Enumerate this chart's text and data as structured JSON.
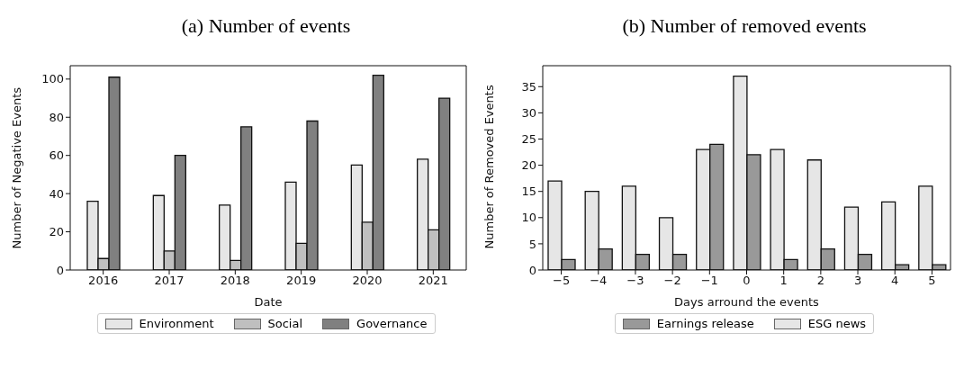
{
  "chart_data": [
    {
      "type": "bar",
      "title": "(a) Number of events",
      "xlabel": "Date",
      "ylabel": "Number of Negative Events",
      "categories": [
        "2016",
        "2017",
        "2018",
        "2019",
        "2020",
        "2021"
      ],
      "series": [
        {
          "name": "Environment",
          "color": "#e6e6e6",
          "values": [
            36,
            39,
            34,
            46,
            55,
            58
          ]
        },
        {
          "name": "Social",
          "color": "#bfbfbf",
          "values": [
            6,
            10,
            5,
            14,
            25,
            21
          ]
        },
        {
          "name": "Governance",
          "color": "#808080",
          "values": [
            101,
            60,
            75,
            78,
            102,
            90
          ]
        }
      ],
      "ylim": [
        0,
        107
      ],
      "yticks": [
        0,
        20,
        40,
        60,
        80,
        100
      ],
      "grid": false,
      "legend": "bottom"
    },
    {
      "type": "bar",
      "title": "(b) Number of removed events",
      "xlabel": "Days arround the events",
      "ylabel": "Number of Removed Events",
      "categories": [
        "−5",
        "−4",
        "−3",
        "−2",
        "−1",
        "0",
        "1",
        "2",
        "3",
        "4",
        "5"
      ],
      "series": [
        {
          "name": "ESG news",
          "color": "#e6e6e6",
          "values": [
            17,
            15,
            16,
            10,
            23,
            37,
            23,
            21,
            12,
            13,
            16
          ]
        },
        {
          "name": "Earnings release",
          "color": "#999999",
          "values": [
            2,
            4,
            3,
            3,
            24,
            22,
            2,
            4,
            3,
            1,
            1
          ]
        }
      ],
      "ylim": [
        0,
        39
      ],
      "yticks": [
        0,
        5,
        10,
        15,
        20,
        25,
        30,
        35
      ],
      "grid": false,
      "legend": "bottom"
    }
  ]
}
